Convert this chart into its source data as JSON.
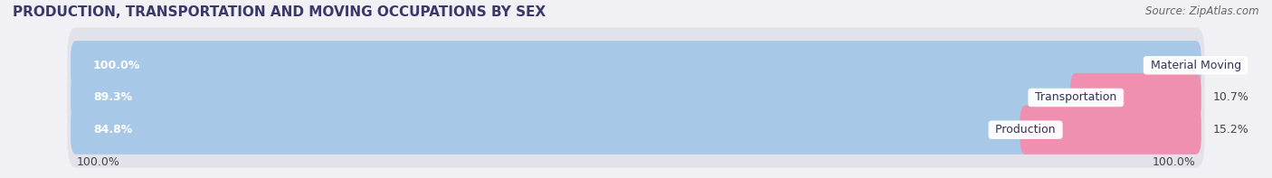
{
  "title": "PRODUCTION, TRANSPORTATION AND MOVING OCCUPATIONS BY SEX",
  "source": "Source: ZipAtlas.com",
  "categories": [
    "Material Moving",
    "Transportation",
    "Production"
  ],
  "male_values": [
    100.0,
    89.3,
    84.8
  ],
  "female_values": [
    0.0,
    10.7,
    15.2
  ],
  "male_color": "#a8c8e8",
  "female_color": "#f090b0",
  "bar_bg_color": "#e2e2ea",
  "title_fontsize": 11,
  "label_fontsize": 9,
  "bar_label_fontsize": 9,
  "category_fontsize": 9,
  "source_fontsize": 8.5,
  "background_color": "#f0f0f5"
}
